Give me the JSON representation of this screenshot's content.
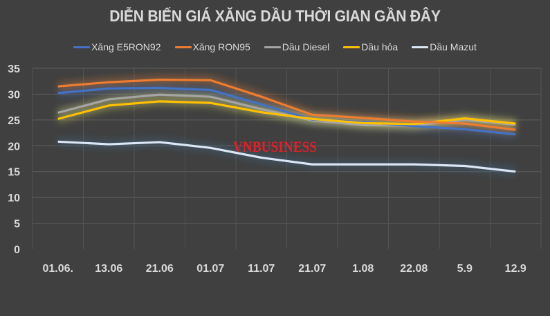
{
  "chart_data": {
    "type": "line",
    "title": "DIỄN BIẾN GIÁ XĂNG DẦU THỜI GIAN GẦN ĐÂY",
    "xlabel": "",
    "ylabel": "",
    "ylim": [
      0,
      35
    ],
    "yticks": [
      0,
      5,
      10,
      15,
      20,
      25,
      30,
      35
    ],
    "grid": true,
    "legend_position": "top",
    "categories": [
      "01.06.",
      "13.06",
      "21.06",
      "01.07",
      "11.07",
      "21.07",
      "1.08",
      "22.08",
      "5.9",
      "12.9"
    ],
    "series": [
      {
        "name": "Xăng E5RON92",
        "color": "#4472c4",
        "values": [
          30.2,
          31.1,
          31.2,
          30.8,
          28.0,
          25.1,
          24.6,
          23.8,
          23.2,
          22.2
        ]
      },
      {
        "name": "Xăng RON95",
        "color": "#ed7d31",
        "values": [
          31.5,
          32.3,
          32.8,
          32.7,
          29.5,
          26.0,
          25.4,
          24.7,
          24.3,
          23.1
        ]
      },
      {
        "name": "Dầu Diesel",
        "color": "#a5a5a5",
        "values": [
          26.4,
          29.0,
          29.9,
          29.5,
          27.1,
          24.9,
          24.0,
          23.9,
          25.0,
          24.1
        ]
      },
      {
        "name": "Dầu hỏa",
        "color": "#ffc000",
        "values": [
          25.2,
          27.8,
          28.6,
          28.3,
          26.5,
          25.2,
          24.4,
          24.2,
          25.3,
          24.3
        ]
      },
      {
        "name": "Dầu Mazut",
        "color": "#dce6f5",
        "values": [
          20.8,
          20.3,
          20.7,
          19.6,
          17.7,
          16.4,
          16.4,
          16.4,
          16.1,
          15.0
        ]
      }
    ],
    "annotations": [
      "VNBUSINESS"
    ]
  },
  "watermark": "VNBUSINESS"
}
